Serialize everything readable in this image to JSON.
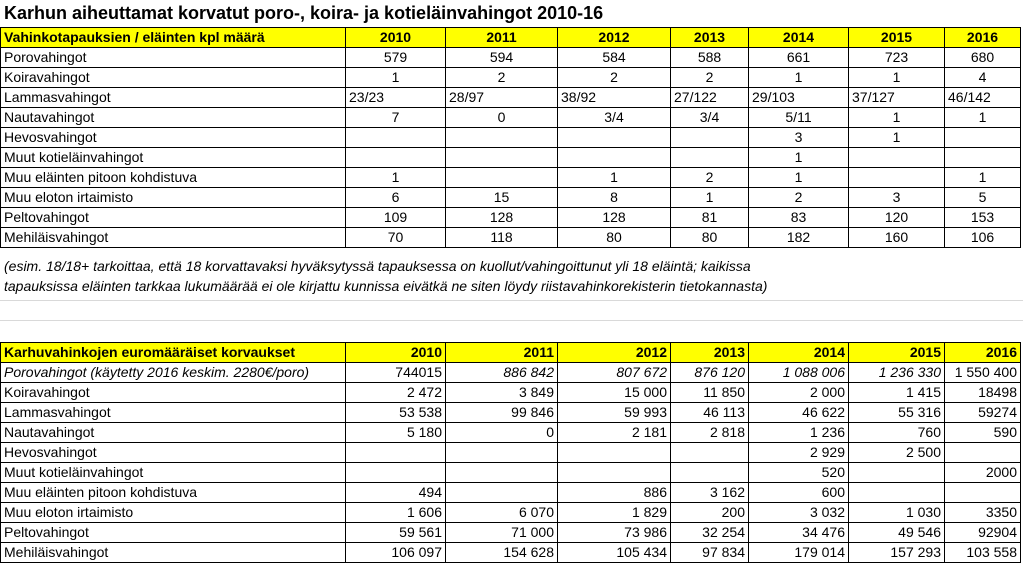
{
  "title": "Karhun aiheuttamat korvatut poro-, koira- ja kotieläinvahingot 2010-16",
  "table1": {
    "header": [
      "Vahinkotapauksien / eläinten kpl määrä",
      "2010",
      "2011",
      "2012",
      "2013",
      "2014",
      "2015",
      "2016"
    ],
    "rows": [
      [
        "Porovahingot",
        "579",
        "594",
        "584",
        "588",
        "661",
        "723",
        "680"
      ],
      [
        "Koiravahingot",
        "1",
        "2",
        "2",
        "2",
        "1",
        "1",
        "4"
      ],
      [
        "Lammasvahingot",
        "23/23",
        "28/97",
        "38/92",
        "27/122",
        "29/103",
        "37/127",
        "46/142"
      ],
      [
        "Nautavahingot",
        "7",
        "0",
        "3/4",
        "3/4",
        "5/11",
        "1",
        "1"
      ],
      [
        "Hevosvahingot",
        "",
        "",
        "",
        "",
        "3",
        "1",
        ""
      ],
      [
        "Muut kotieläinvahingot",
        "",
        "",
        "",
        "",
        "1",
        "",
        ""
      ],
      [
        "Muu eläinten pitoon kohdistuva",
        "1",
        "",
        "1",
        "2",
        "1",
        "",
        "1"
      ],
      [
        "Muu eloton irtaimisto",
        "6",
        "15",
        "8",
        "1",
        "2",
        "3",
        "5"
      ],
      [
        "Peltovahingot",
        "109",
        "128",
        "128",
        "81",
        "83",
        "120",
        "153"
      ],
      [
        "Mehiläisvahingot",
        "70",
        "118",
        "80",
        "80",
        "182",
        "160",
        "106"
      ]
    ]
  },
  "note": {
    "line1": "(esim. 18/18+ tarkoittaa, että 18 korvattavaksi hyväksytyssä tapauksessa on kuollut/vahingoittunut yli 18 eläintä; kaikissa",
    "line2": "tapauksissa eläinten tarkkaa lukumäärää ei ole kirjattu kunnissa eivätkä ne siten löydy riistavahinkorekisterin tietokannasta)"
  },
  "table2": {
    "header": [
      "Karhuvahinkojen euromääräiset korvaukset",
      "2010",
      "2011",
      "2012",
      "2013",
      "2014",
      "2015",
      "2016"
    ],
    "rows": [
      [
        "Porovahingot (käytetty 2016 keskim. 2280€/poro)",
        "744015",
        "886 842",
        "807 672",
        "876 120",
        "1 088 006",
        "1 236 330",
        "1 550 400"
      ],
      [
        "Koiravahingot",
        "2 472",
        "3 849",
        "15 000",
        "11 850",
        "2 000",
        "1 415",
        "18498"
      ],
      [
        "Lammasvahingot",
        "53 538",
        "99 846",
        "59 993",
        "46 113",
        "46 622",
        "55 316",
        "59274"
      ],
      [
        "Nautavahingot",
        "5 180",
        "0",
        "2 181",
        "2 818",
        "1 236",
        "760",
        "590"
      ],
      [
        "Hevosvahingot",
        "",
        "",
        "",
        "",
        "2 929",
        "2 500",
        ""
      ],
      [
        "Muut kotieläinvahingot",
        "",
        "",
        "",
        "",
        "520",
        "",
        "2000"
      ],
      [
        "Muu eläinten pitoon kohdistuva",
        "494",
        "",
        "886",
        "3 162",
        "600",
        "",
        ""
      ],
      [
        "Muu eloton irtaimisto",
        "1 606",
        "6 070",
        "1 829",
        "200",
        "3 032",
        "1 030",
        "3350"
      ],
      [
        "Peltovahingot",
        "59 561",
        "71 000",
        "73 986",
        "32 254",
        "34 476",
        "49 546",
        "92904"
      ],
      [
        "Mehiläisvahingot",
        "106 097",
        "154 628",
        "105 434",
        "97 834",
        "179 014",
        "157 293",
        "103 558"
      ]
    ]
  }
}
